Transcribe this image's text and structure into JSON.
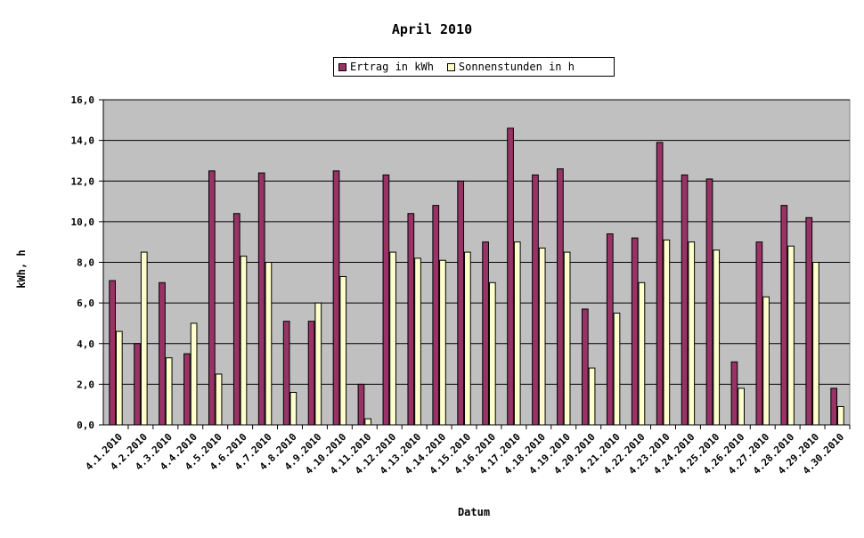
{
  "chart_data": {
    "type": "bar",
    "title": "April 2010",
    "xlabel": "Datum",
    "ylabel": "kWh, h",
    "ylim": [
      0,
      16
    ],
    "yticks": [
      "0,0",
      "2,0",
      "4,0",
      "6,0",
      "8,0",
      "10,0",
      "12,0",
      "14,0",
      "16,0"
    ],
    "grid": true,
    "legend": "top-center",
    "categories": [
      "4.1.2010",
      "4.2.2010",
      "4.3.2010",
      "4.4.2010",
      "4.5.2010",
      "4.6.2010",
      "4.7.2010",
      "4.8.2010",
      "4.9.2010",
      "4.10.2010",
      "4.11.2010",
      "4.12.2010",
      "4.13.2010",
      "4.14.2010",
      "4.15.2010",
      "4.16.2010",
      "4.17.2010",
      "4.18.2010",
      "4.19.2010",
      "4.20.2010",
      "4.21.2010",
      "4.22.2010",
      "4.23.2010",
      "4.24.2010",
      "4.25.2010",
      "4.26.2010",
      "4.27.2010",
      "4.28.2010",
      "4.29.2010",
      "4.30.2010"
    ],
    "series": [
      {
        "name": "Ertrag in kWh",
        "color": "#993366",
        "values": [
          7.1,
          4.0,
          7.0,
          3.5,
          12.5,
          10.4,
          12.4,
          5.1,
          5.1,
          12.5,
          2.0,
          12.3,
          10.4,
          10.8,
          12.0,
          9.0,
          14.6,
          12.3,
          12.6,
          5.7,
          9.4,
          9.2,
          13.9,
          12.3,
          12.1,
          3.1,
          9.0,
          10.8,
          10.2,
          1.8
        ]
      },
      {
        "name": "Sonnenstunden in h",
        "color": "#ffffcc",
        "values": [
          4.6,
          8.5,
          3.3,
          5.0,
          2.5,
          8.3,
          8.0,
          1.6,
          6.0,
          7.3,
          0.3,
          8.5,
          8.2,
          8.1,
          8.5,
          7.0,
          9.0,
          8.7,
          8.5,
          2.8,
          5.5,
          7.0,
          9.1,
          9.0,
          8.6,
          1.8,
          6.3,
          8.8,
          8.0,
          0.9
        ]
      }
    ],
    "colors": {
      "plot_bg": "#c0c0c0",
      "grid": "#000000"
    }
  }
}
